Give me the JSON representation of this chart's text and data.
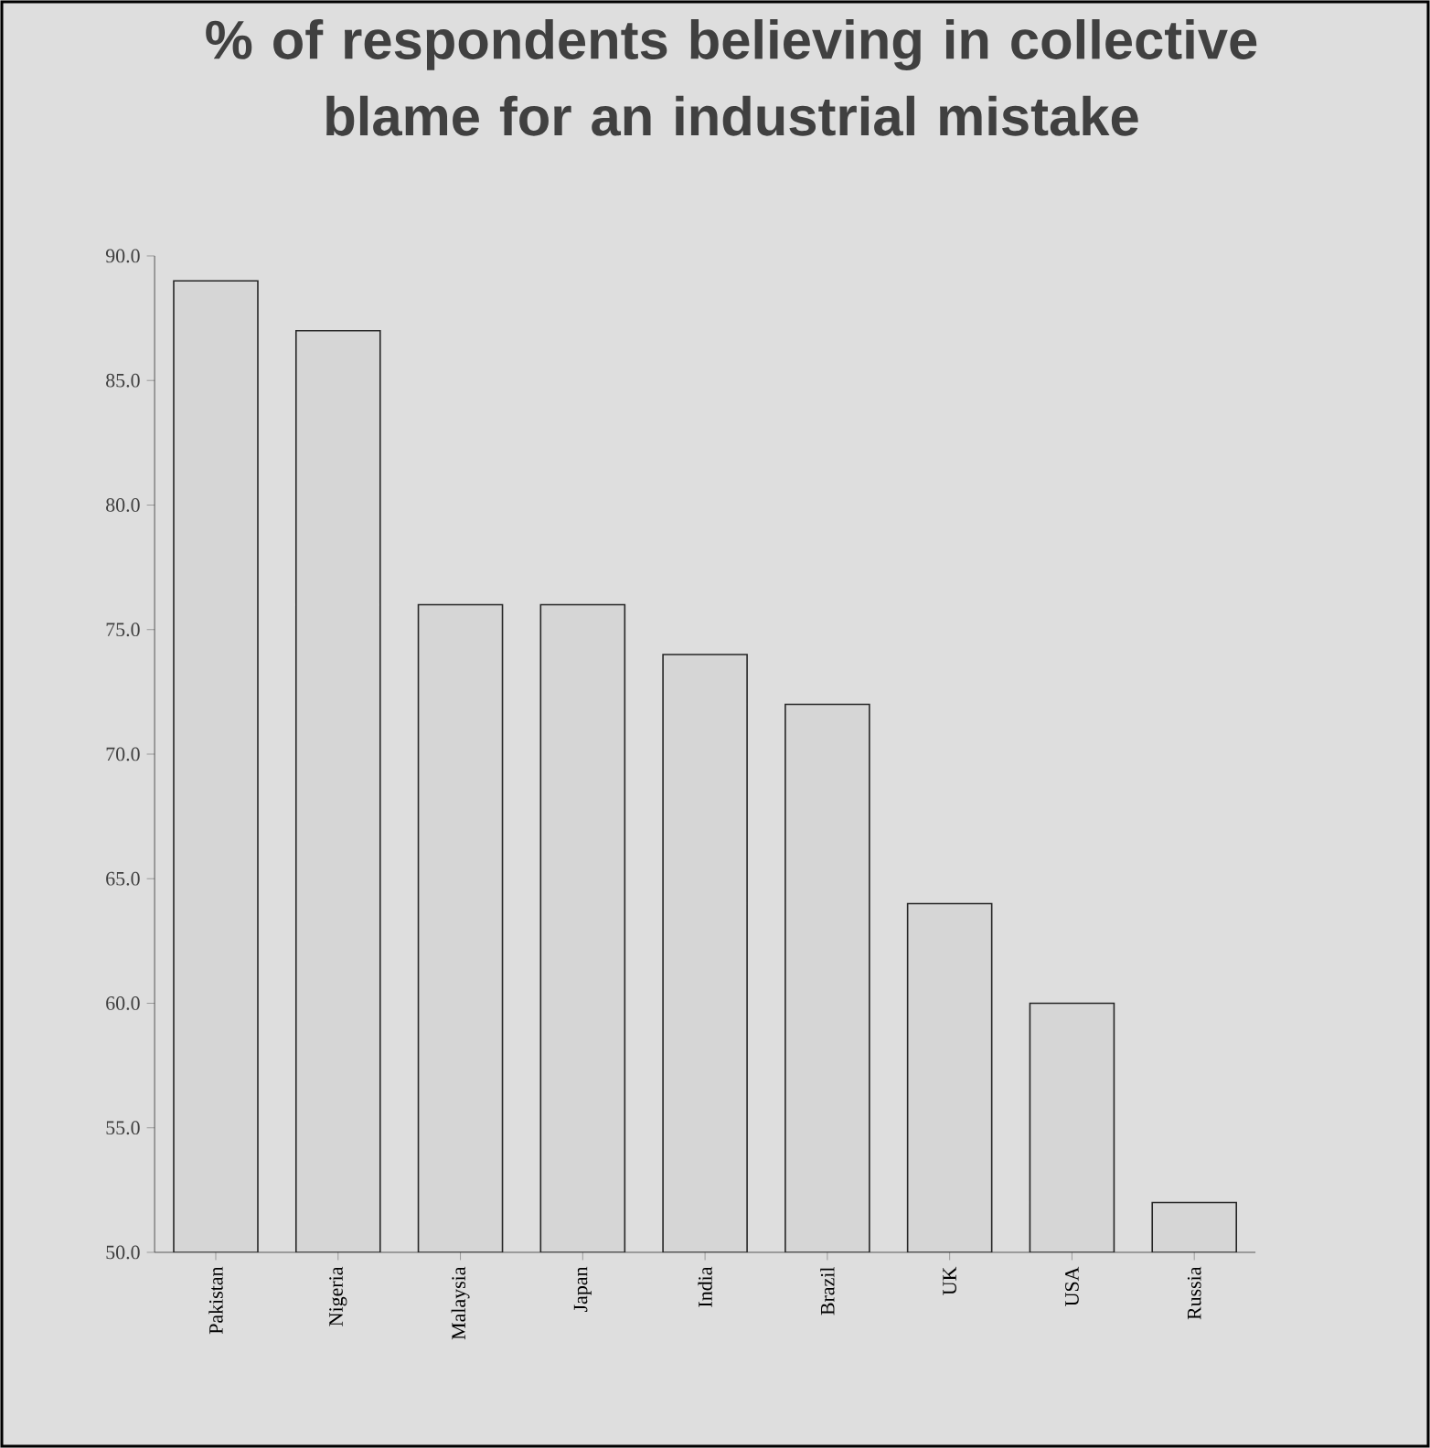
{
  "chart_data": {
    "type": "bar",
    "title": "% of respondents believing in collective blame for an industrial mistake",
    "categories": [
      "Pakistan",
      "Nigeria",
      "Malaysia",
      "Japan",
      "India",
      "Brazil",
      "UK",
      "USA",
      "Russia"
    ],
    "values": [
      89,
      87,
      76,
      76,
      74,
      72,
      64,
      60,
      52
    ],
    "color": "#d6d6d6",
    "ylim": [
      50,
      90
    ],
    "yticks": [
      {
        "value": 50,
        "label": "50.0"
      },
      {
        "value": 55,
        "label": "55.0"
      },
      {
        "value": 60,
        "label": "60.0"
      },
      {
        "value": 65,
        "label": "65.0"
      },
      {
        "value": 70,
        "label": "70.0"
      },
      {
        "value": 75,
        "label": "75.0"
      },
      {
        "value": 80,
        "label": "80.0"
      },
      {
        "value": 85,
        "label": "85.0"
      },
      {
        "value": 90,
        "label": "90.0"
      }
    ],
    "grid": false
  }
}
